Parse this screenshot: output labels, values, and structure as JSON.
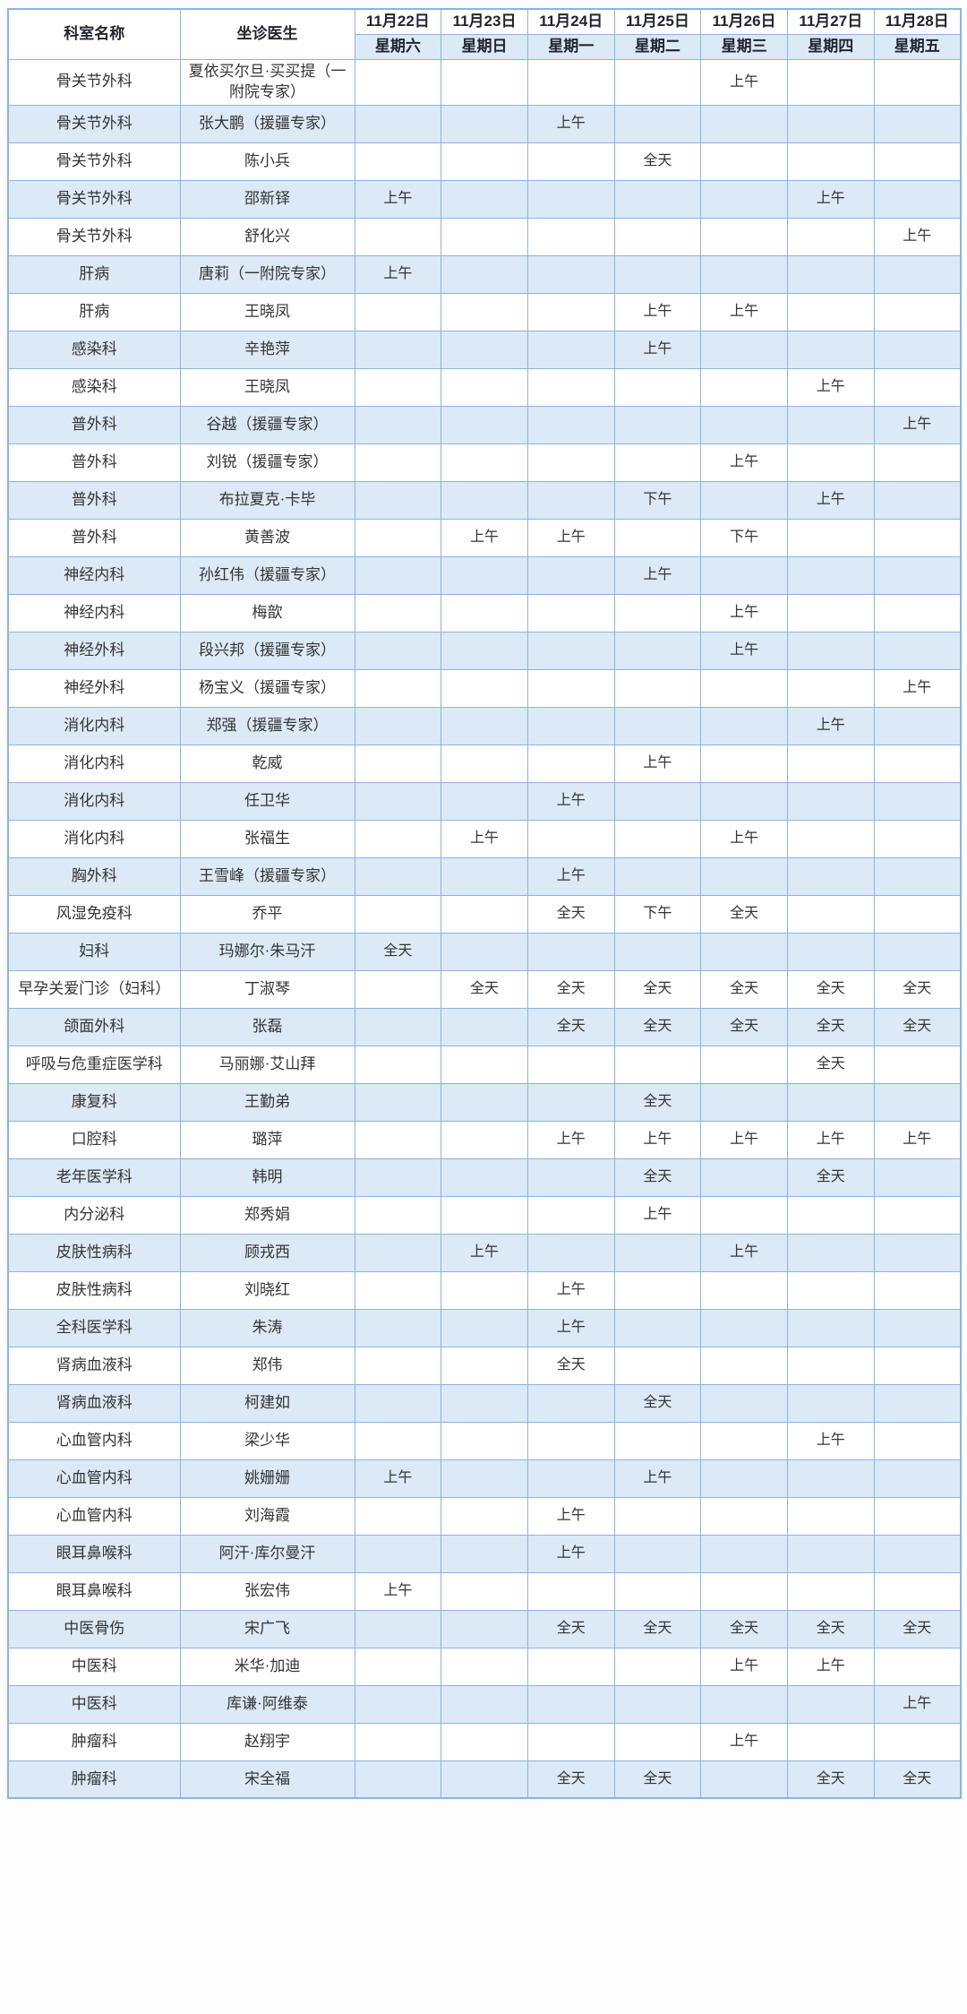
{
  "table": {
    "department_header": "科室名称",
    "doctor_header": "坐诊医生",
    "days": [
      {
        "date": "11月22日",
        "weekday": "星期六"
      },
      {
        "date": "11月23日",
        "weekday": "星期日"
      },
      {
        "date": "11月24日",
        "weekday": "星期一"
      },
      {
        "date": "11月25日",
        "weekday": "星期二"
      },
      {
        "date": "11月26日",
        "weekday": "星期三"
      },
      {
        "date": "11月27日",
        "weekday": "星期四"
      },
      {
        "date": "11月28日",
        "weekday": "星期五"
      }
    ],
    "rows": [
      {
        "department": "骨关节外科",
        "doctor": "夏依买尔旦·买买提（一附院专家）",
        "schedule": [
          "",
          "",
          "",
          "",
          "上午",
          "",
          ""
        ]
      },
      {
        "department": "骨关节外科",
        "doctor": "张大鹏（援疆专家）",
        "schedule": [
          "",
          "",
          "上午",
          "",
          "",
          "",
          ""
        ]
      },
      {
        "department": "骨关节外科",
        "doctor": "陈小兵",
        "schedule": [
          "",
          "",
          "",
          "全天",
          "",
          "",
          ""
        ]
      },
      {
        "department": "骨关节外科",
        "doctor": "邵新铎",
        "schedule": [
          "上午",
          "",
          "",
          "",
          "",
          "上午",
          ""
        ]
      },
      {
        "department": "骨关节外科",
        "doctor": "舒化兴",
        "schedule": [
          "",
          "",
          "",
          "",
          "",
          "",
          "上午"
        ]
      },
      {
        "department": "肝病",
        "doctor": "唐莉（一附院专家）",
        "schedule": [
          "上午",
          "",
          "",
          "",
          "",
          "",
          ""
        ]
      },
      {
        "department": "肝病",
        "doctor": "王晓凤",
        "schedule": [
          "",
          "",
          "",
          "上午",
          "上午",
          "",
          ""
        ]
      },
      {
        "department": "感染科",
        "doctor": "辛艳萍",
        "schedule": [
          "",
          "",
          "",
          "上午",
          "",
          "",
          ""
        ]
      },
      {
        "department": "感染科",
        "doctor": "王晓凤",
        "schedule": [
          "",
          "",
          "",
          "",
          "",
          "上午",
          ""
        ]
      },
      {
        "department": "普外科",
        "doctor": "谷越（援疆专家）",
        "schedule": [
          "",
          "",
          "",
          "",
          "",
          "",
          "上午"
        ]
      },
      {
        "department": "普外科",
        "doctor": "刘锐（援疆专家）",
        "schedule": [
          "",
          "",
          "",
          "",
          "上午",
          "",
          ""
        ]
      },
      {
        "department": "普外科",
        "doctor": "布拉夏克·卡毕",
        "schedule": [
          "",
          "",
          "",
          "下午",
          "",
          "上午",
          ""
        ]
      },
      {
        "department": "普外科",
        "doctor": "黄善波",
        "schedule": [
          "",
          "上午",
          "上午",
          "",
          "下午",
          "",
          ""
        ]
      },
      {
        "department": "神经内科",
        "doctor": "孙红伟（援疆专家）",
        "schedule": [
          "",
          "",
          "",
          "上午",
          "",
          "",
          ""
        ]
      },
      {
        "department": "神经内科",
        "doctor": "梅歆",
        "schedule": [
          "",
          "",
          "",
          "",
          "上午",
          "",
          ""
        ]
      },
      {
        "department": "神经外科",
        "doctor": "段兴邦（援疆专家）",
        "schedule": [
          "",
          "",
          "",
          "",
          "上午",
          "",
          ""
        ]
      },
      {
        "department": "神经外科",
        "doctor": "杨宝义（援疆专家）",
        "schedule": [
          "",
          "",
          "",
          "",
          "",
          "",
          "上午"
        ]
      },
      {
        "department": "消化内科",
        "doctor": "郑强（援疆专家）",
        "schedule": [
          "",
          "",
          "",
          "",
          "",
          "上午",
          ""
        ]
      },
      {
        "department": "消化内科",
        "doctor": "乾威",
        "schedule": [
          "",
          "",
          "",
          "上午",
          "",
          "",
          ""
        ]
      },
      {
        "department": "消化内科",
        "doctor": "任卫华",
        "schedule": [
          "",
          "",
          "上午",
          "",
          "",
          "",
          ""
        ]
      },
      {
        "department": "消化内科",
        "doctor": "张福生",
        "schedule": [
          "",
          "上午",
          "",
          "",
          "上午",
          "",
          ""
        ]
      },
      {
        "department": "胸外科",
        "doctor": "王雪峰（援疆专家）",
        "schedule": [
          "",
          "",
          "上午",
          "",
          "",
          "",
          ""
        ]
      },
      {
        "department": "风湿免疫科",
        "doctor": "乔平",
        "schedule": [
          "",
          "",
          "全天",
          "下午",
          "全天",
          "",
          ""
        ]
      },
      {
        "department": "妇科",
        "doctor": "玛娜尔·朱马汗",
        "schedule": [
          "全天",
          "",
          "",
          "",
          "",
          "",
          ""
        ]
      },
      {
        "department": "早孕关爱门诊（妇科）",
        "doctor": "丁淑琴",
        "schedule": [
          "",
          "全天",
          "全天",
          "全天",
          "全天",
          "全天",
          "全天"
        ]
      },
      {
        "department": "颌面外科",
        "doctor": "张磊",
        "schedule": [
          "",
          "",
          "全天",
          "全天",
          "全天",
          "全天",
          "全天"
        ]
      },
      {
        "department": "呼吸与危重症医学科",
        "doctor": "马丽娜·艾山拜",
        "schedule": [
          "",
          "",
          "",
          "",
          "",
          "全天",
          ""
        ]
      },
      {
        "department": "康复科",
        "doctor": "王勤弟",
        "schedule": [
          "",
          "",
          "",
          "全天",
          "",
          "",
          ""
        ]
      },
      {
        "department": "口腔科",
        "doctor": "璐萍",
        "schedule": [
          "",
          "",
          "上午",
          "上午",
          "上午",
          "上午",
          "上午"
        ]
      },
      {
        "department": "老年医学科",
        "doctor": "韩明",
        "schedule": [
          "",
          "",
          "",
          "全天",
          "",
          "全天",
          ""
        ]
      },
      {
        "department": "内分泌科",
        "doctor": "郑秀娟",
        "schedule": [
          "",
          "",
          "",
          "上午",
          "",
          "",
          ""
        ]
      },
      {
        "department": "皮肤性病科",
        "doctor": "顾戎西",
        "schedule": [
          "",
          "上午",
          "",
          "",
          "上午",
          "",
          ""
        ]
      },
      {
        "department": "皮肤性病科",
        "doctor": "刘晓红",
        "schedule": [
          "",
          "",
          "上午",
          "",
          "",
          "",
          ""
        ]
      },
      {
        "department": "全科医学科",
        "doctor": "朱涛",
        "schedule": [
          "",
          "",
          "上午",
          "",
          "",
          "",
          ""
        ]
      },
      {
        "department": "肾病血液科",
        "doctor": "郑伟",
        "schedule": [
          "",
          "",
          "全天",
          "",
          "",
          "",
          ""
        ]
      },
      {
        "department": "肾病血液科",
        "doctor": "柯建如",
        "schedule": [
          "",
          "",
          "",
          "全天",
          "",
          "",
          ""
        ]
      },
      {
        "department": "心血管内科",
        "doctor": "梁少华",
        "schedule": [
          "",
          "",
          "",
          "",
          "",
          "上午",
          ""
        ]
      },
      {
        "department": "心血管内科",
        "doctor": "姚姗姗",
        "schedule": [
          "上午",
          "",
          "",
          "上午",
          "",
          "",
          ""
        ]
      },
      {
        "department": "心血管内科",
        "doctor": "刘海霞",
        "schedule": [
          "",
          "",
          "上午",
          "",
          "",
          "",
          ""
        ]
      },
      {
        "department": "眼耳鼻喉科",
        "doctor": "阿汗·库尔曼汗",
        "schedule": [
          "",
          "",
          "上午",
          "",
          "",
          "",
          ""
        ]
      },
      {
        "department": "眼耳鼻喉科",
        "doctor": "张宏伟",
        "schedule": [
          "上午",
          "",
          "",
          "",
          "",
          "",
          ""
        ]
      },
      {
        "department": "中医骨伤",
        "doctor": "宋广飞",
        "schedule": [
          "",
          "",
          "全天",
          "全天",
          "全天",
          "全天",
          "全天"
        ]
      },
      {
        "department": "中医科",
        "doctor": "米华·加迪",
        "schedule": [
          "",
          "",
          "",
          "",
          "上午",
          "上午",
          ""
        ]
      },
      {
        "department": "中医科",
        "doctor": "库谦·阿维泰",
        "schedule": [
          "",
          "",
          "",
          "",
          "",
          "",
          "上午"
        ]
      },
      {
        "department": "肿瘤科",
        "doctor": "赵翔宇",
        "schedule": [
          "",
          "",
          "",
          "",
          "上午",
          "",
          ""
        ]
      },
      {
        "department": "肿瘤科",
        "doctor": "宋全福",
        "schedule": [
          "",
          "",
          "全天",
          "全天",
          "",
          "全天",
          "全天"
        ]
      }
    ]
  },
  "colors": {
    "border": "#8ab4e0",
    "row_alt_background": "#dce9f6",
    "header_text": "#1f2430",
    "body_text": "#343434"
  }
}
